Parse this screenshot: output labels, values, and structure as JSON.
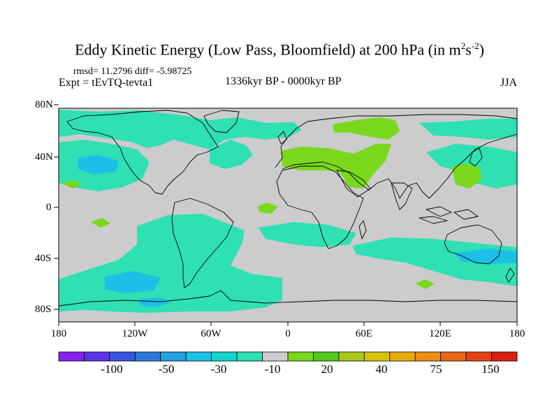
{
  "title": {
    "main": "Eddy Kinetic Energy (Low Pass, Bloomfield) at 200 hPa (in m",
    "sup1": "2",
    "mid": "s",
    "sup2": "-2",
    "end": ")"
  },
  "stats": "rmsd= 11.2796 diff= -5.98725",
  "experiment": "Expt = tEvTQ-tevta1",
  "period": "1336kyr BP - 0000kyr BP",
  "season": "JJA",
  "lat_labels": [
    "80N",
    "40N",
    "0",
    "40S",
    "80S"
  ],
  "lon_labels": [
    "180",
    "120W",
    "60W",
    "0",
    "60E",
    "120E",
    "180"
  ],
  "colorbar": {
    "labels": [
      "-100",
      "-50",
      "-30",
      "-10",
      "20",
      "40",
      "75",
      "150"
    ],
    "colors": [
      "#8a22ee",
      "#5a35e8",
      "#3a56e0",
      "#2b7ad8",
      "#22a0e0",
      "#1cc0e6",
      "#14d4cc",
      "#2ee0b4",
      "#cccccc",
      "#7ad81c",
      "#52c81e",
      "#a8c81a",
      "#d6c40e",
      "#e8ac0a",
      "#ec8e16",
      "#e86618",
      "#e24418",
      "#d62010"
    ]
  },
  "colors": {
    "land_bg": "#cccccc",
    "positive_small": "#7ad81c",
    "negative_small": "#2ee0b4",
    "negative_mid": "#14d4cc",
    "negative_large": "#1cc0e6",
    "coast": "#000000"
  }
}
